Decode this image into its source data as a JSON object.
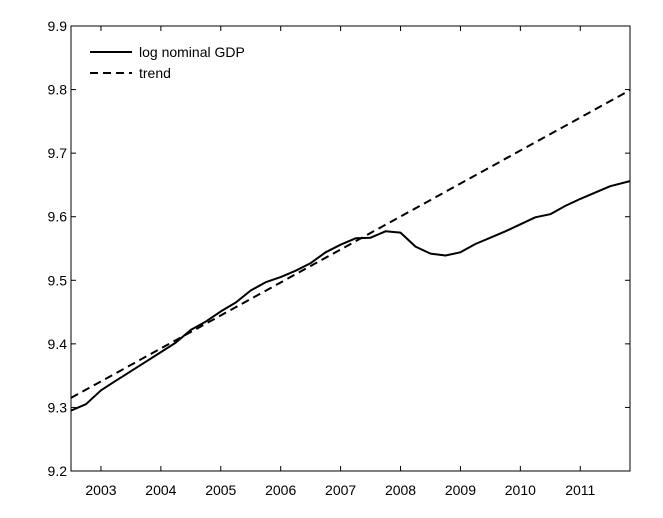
{
  "chart_data": {
    "type": "line",
    "title": "",
    "xlabel": "",
    "ylabel": "",
    "xlim": [
      2002.5,
      2011.83
    ],
    "ylim": [
      9.2,
      9.9
    ],
    "x_ticks": [
      {
        "value": 2003,
        "label": "2003"
      },
      {
        "value": 2004,
        "label": "2004"
      },
      {
        "value": 2005,
        "label": "2005"
      },
      {
        "value": 2006,
        "label": "2006"
      },
      {
        "value": 2007,
        "label": "2007"
      },
      {
        "value": 2008,
        "label": "2008"
      },
      {
        "value": 2009,
        "label": "2009"
      },
      {
        "value": 2010,
        "label": "2010"
      },
      {
        "value": 2011,
        "label": "2011"
      }
    ],
    "y_ticks": [
      {
        "value": 9.2,
        "label": "9.2"
      },
      {
        "value": 9.3,
        "label": "9.3"
      },
      {
        "value": 9.4,
        "label": "9.4"
      },
      {
        "value": 9.5,
        "label": "9.5"
      },
      {
        "value": 9.6,
        "label": "9.6"
      },
      {
        "value": 9.7,
        "label": "9.7"
      },
      {
        "value": 9.8,
        "label": "9.8"
      },
      {
        "value": 9.9,
        "label": "9.9"
      }
    ],
    "grid": false,
    "legend_position": "top-left",
    "series": [
      {
        "name": "log nominal GDP",
        "style": "solid",
        "x": [
          2002.5,
          2002.75,
          2003.0,
          2003.25,
          2003.5,
          2003.75,
          2004.0,
          2004.25,
          2004.5,
          2004.75,
          2005.0,
          2005.25,
          2005.5,
          2005.75,
          2006.0,
          2006.25,
          2006.5,
          2006.75,
          2007.0,
          2007.25,
          2007.5,
          2007.75,
          2008.0,
          2008.25,
          2008.5,
          2008.75,
          2009.0,
          2009.25,
          2009.5,
          2009.75,
          2010.0,
          2010.25,
          2010.5,
          2010.75,
          2011.0,
          2011.25,
          2011.5,
          2011.83
        ],
        "y": [
          9.295,
          9.305,
          9.327,
          9.342,
          9.357,
          9.372,
          9.387,
          9.402,
          9.422,
          9.435,
          9.451,
          9.465,
          9.484,
          9.497,
          9.505,
          9.515,
          9.527,
          9.544,
          9.556,
          9.566,
          9.567,
          9.577,
          9.575,
          9.553,
          9.542,
          9.539,
          9.544,
          9.557,
          9.567,
          9.577,
          9.588,
          9.599,
          9.604,
          9.617,
          9.628,
          9.638,
          9.648,
          9.656
        ]
      },
      {
        "name": "trend",
        "style": "dashed",
        "x": [
          2002.5,
          2011.83
        ],
        "y": [
          9.315,
          9.799
        ]
      }
    ]
  }
}
